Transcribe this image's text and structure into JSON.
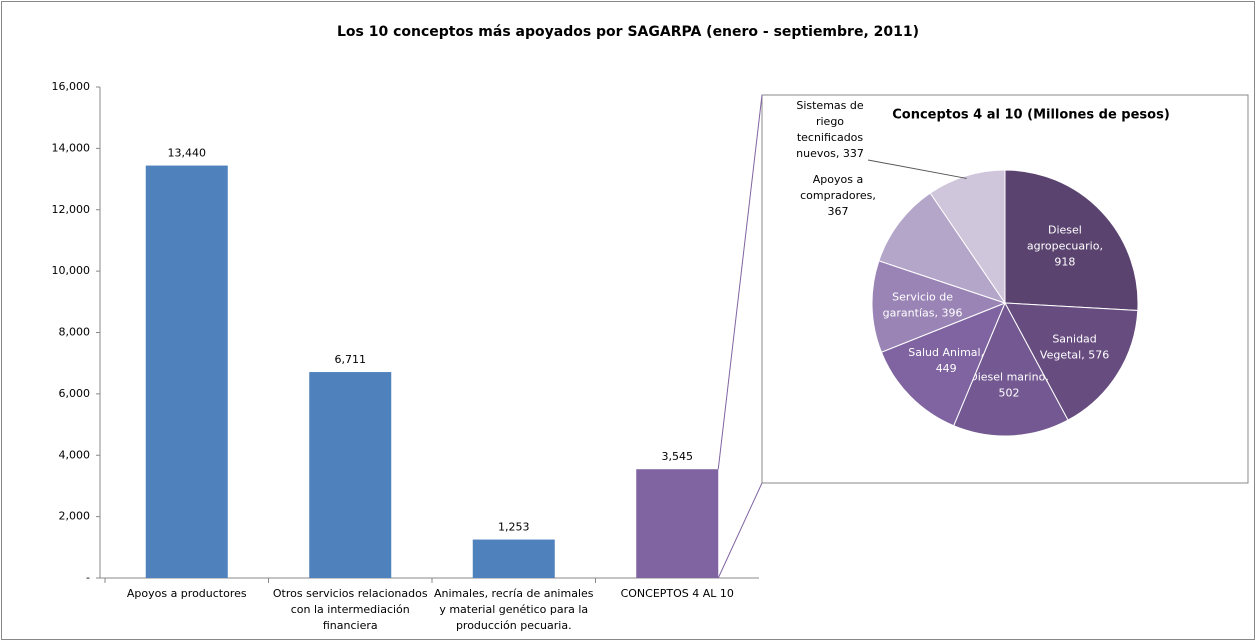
{
  "chart_data": [
    {
      "type": "bar",
      "title": "Los 10 conceptos más apoyados por SAGARPA (enero - septiembre, 2011)",
      "categories": [
        "Apoyos a productores",
        "Otros servicios relacionados con la intermediación financiera",
        "Animales, recría de animales y material genético para la producción pecuaria.",
        "CONCEPTOS 4 AL 10"
      ],
      "values": [
        13440,
        6711,
        1253,
        3545
      ],
      "value_labels": [
        "13,440",
        "6,711",
        "1,253",
        "3,545"
      ],
      "colors": [
        "#4f81bd",
        "#4f81bd",
        "#4f81bd",
        "#8064a2"
      ],
      "ylim": [
        0,
        16000
      ],
      "yticks": [
        {
          "value": 0,
          "label": "-"
        },
        {
          "value": 2000,
          "label": "2,000"
        },
        {
          "value": 4000,
          "label": "4,000"
        },
        {
          "value": 6000,
          "label": "6,000"
        },
        {
          "value": 8000,
          "label": "8,000"
        },
        {
          "value": 10000,
          "label": "10,000"
        },
        {
          "value": 12000,
          "label": "12,000"
        },
        {
          "value": 14000,
          "label": "14,000"
        },
        {
          "value": 16000,
          "label": "16,000"
        }
      ],
      "grid": false
    },
    {
      "type": "pie",
      "title": "Conceptos 4 al 10 (Millones de pesos)",
      "values": [
        918,
        576,
        502,
        449,
        396,
        367,
        337
      ],
      "value_labels": [
        "Diesel agropecuario, 918",
        "Sanidad Vegetal, 576",
        "Diesel marino, 502",
        "Salud Animal, 449",
        "Servicio de garantías, 396",
        "Apoyos a compradores, 367",
        "Sistemas de riego tecnificados nuevos, 337"
      ],
      "colors": [
        "#5b4370",
        "#674c80",
        "#735891",
        "#7f64a1",
        "#9a84b6",
        "#b4a6c9",
        "#d0c6dc"
      ]
    }
  ]
}
